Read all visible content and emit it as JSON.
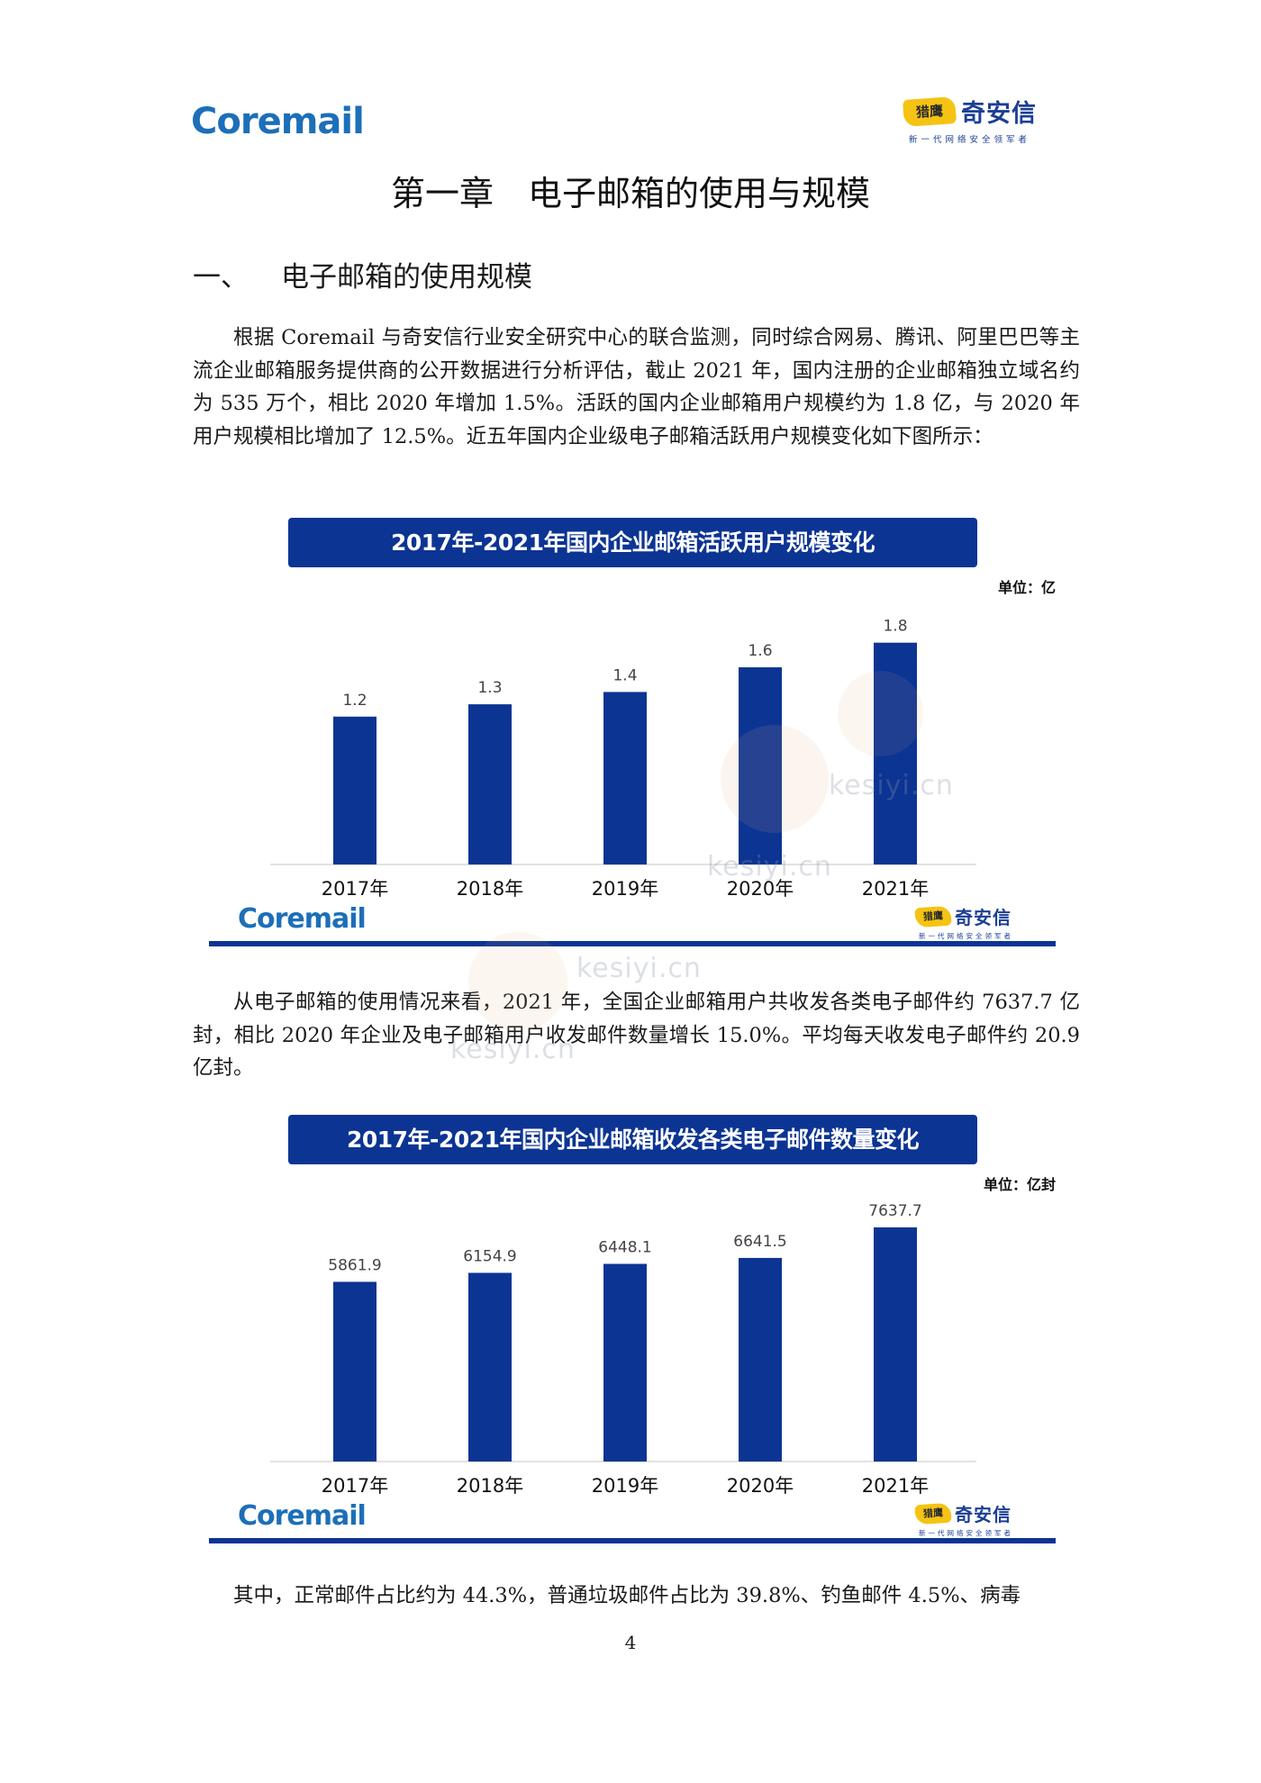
{
  "header": {
    "brand_left": "Coremail",
    "brand_right_name": "奇安信",
    "brand_right_slogan": "新一代网络安全领军者",
    "brand_right_mark": "猎鹰"
  },
  "chapter_title": "第一章　电子邮箱的使用与规模",
  "section": {
    "number": "一、",
    "title": "电子邮箱的使用规模"
  },
  "paragraphs": {
    "p1": "根据 Coremail 与奇安信行业安全研究中心的联合监测，同时综合网易、腾讯、阿里巴巴等主流企业邮箱服务提供商的公开数据进行分析评估，截止 2021 年，国内注册的企业邮箱独立域名约为 535 万个，相比 2020 年增加 1.5%。活跃的国内企业邮箱用户规模约为 1.8 亿，与 2020 年用户规模相比增加了 12.5%。近五年国内企业级电子邮箱活跃用户规模变化如下图所示：",
    "p2": "从电子邮箱的使用情况来看，2021 年，全国企业邮箱用户共收发各类电子邮件约 7637.7 亿封，相比 2020 年企业及电子邮箱用户收发邮件数量增长 15.0%。平均每天收发电子邮件约 20.9 亿封。",
    "p3": "其中，正常邮件占比约为 44.3%，普通垃圾邮件占比为 39.8%、钓鱼邮件 4.5%、病毒"
  },
  "chart_data": [
    {
      "type": "bar",
      "title": "2017年-2021年国内企业邮箱活跃用户规模变化",
      "unit": "单位：亿",
      "categories": [
        "2017年",
        "2018年",
        "2019年",
        "2020年",
        "2021年"
      ],
      "values": [
        1.2,
        1.3,
        1.4,
        1.6,
        1.8
      ],
      "labels": [
        "1.2",
        "1.3",
        "1.4",
        "1.6",
        "1.8"
      ],
      "ylim": [
        0,
        1.9
      ],
      "color": "#0c3493",
      "grid": false,
      "footer_left": "Coremail",
      "footer_right": "奇安信",
      "footer_right_slogan": "新一代网络安全领军者"
    },
    {
      "type": "bar",
      "title": "2017年-2021年国内企业邮箱收发各类电子邮件数量变化",
      "unit": "单位：亿封",
      "categories": [
        "2017年",
        "2018年",
        "2019年",
        "2020年",
        "2021年"
      ],
      "values": [
        5861.9,
        6154.9,
        6448.1,
        6641.5,
        7637.7
      ],
      "labels": [
        "5861.9",
        "6154.9",
        "6448.1",
        "6641.5",
        "7637.7"
      ],
      "ylim": [
        0,
        7637.7
      ],
      "color": "#0c3493",
      "grid": false,
      "footer_left": "Coremail",
      "footer_right": "奇安信",
      "footer_right_slogan": "新一代网络安全领军者"
    }
  ],
  "watermark": "kesiyi.cn",
  "page_number": "4"
}
